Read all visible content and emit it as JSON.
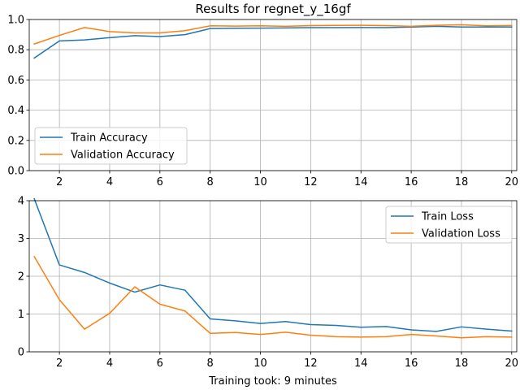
{
  "figure": {
    "footer": "Training took: 9 minutes"
  },
  "chart_data": [
    {
      "type": "line",
      "title": "Results for regnet_y_16gf",
      "xlabel": "",
      "ylabel": "",
      "xlim": [
        0.8,
        20.2
      ],
      "ylim": [
        0,
        1.0
      ],
      "xticks": [
        2,
        4,
        6,
        8,
        10,
        12,
        14,
        16,
        18,
        20
      ],
      "yticks": [
        0.0,
        0.2,
        0.4,
        0.6,
        0.8,
        1.0
      ],
      "ytick_labels": [
        "0.0",
        "0.2",
        "0.4",
        "0.6",
        "0.8",
        "1.0"
      ],
      "grid": true,
      "legend_position": "lower-left",
      "x": [
        1,
        2,
        3,
        4,
        5,
        6,
        7,
        8,
        9,
        10,
        11,
        12,
        13,
        14,
        15,
        16,
        17,
        18,
        19,
        20
      ],
      "series": [
        {
          "name": "Train Accuracy",
          "color": "#1f77b4",
          "values": [
            0.745,
            0.858,
            0.865,
            0.88,
            0.893,
            0.887,
            0.9,
            0.94,
            0.942,
            0.943,
            0.944,
            0.946,
            0.946,
            0.947,
            0.946,
            0.95,
            0.955,
            0.95,
            0.95,
            0.95
          ]
        },
        {
          "name": "Validation Accuracy",
          "color": "#ff7f0e",
          "values": [
            0.838,
            0.895,
            0.947,
            0.92,
            0.911,
            0.911,
            0.926,
            0.958,
            0.956,
            0.958,
            0.955,
            0.96,
            0.961,
            0.962,
            0.96,
            0.955,
            0.962,
            0.965,
            0.958,
            0.96
          ]
        }
      ]
    },
    {
      "type": "line",
      "title": "",
      "xlabel": "",
      "ylabel": "",
      "xlim": [
        0.8,
        20.2
      ],
      "ylim": [
        0,
        4
      ],
      "xticks": [
        2,
        4,
        6,
        8,
        10,
        12,
        14,
        16,
        18,
        20
      ],
      "yticks": [
        0,
        1,
        2,
        3,
        4
      ],
      "ytick_labels": [
        "0",
        "1",
        "2",
        "3",
        "4"
      ],
      "grid": true,
      "legend_position": "upper-right",
      "x": [
        1,
        2,
        3,
        4,
        5,
        6,
        7,
        8,
        9,
        10,
        11,
        12,
        13,
        14,
        15,
        16,
        17,
        18,
        19,
        20
      ],
      "series": [
        {
          "name": "Train Loss",
          "color": "#1f77b4",
          "values": [
            4.05,
            2.3,
            2.1,
            1.82,
            1.58,
            1.77,
            1.63,
            0.87,
            0.82,
            0.75,
            0.8,
            0.72,
            0.7,
            0.65,
            0.67,
            0.58,
            0.54,
            0.66,
            0.6,
            0.55
          ]
        },
        {
          "name": "Validation Loss",
          "color": "#ff7f0e",
          "values": [
            2.52,
            1.38,
            0.6,
            1.02,
            1.72,
            1.26,
            1.08,
            0.49,
            0.51,
            0.46,
            0.52,
            0.44,
            0.4,
            0.39,
            0.4,
            0.46,
            0.42,
            0.37,
            0.4,
            0.39
          ]
        }
      ]
    }
  ]
}
